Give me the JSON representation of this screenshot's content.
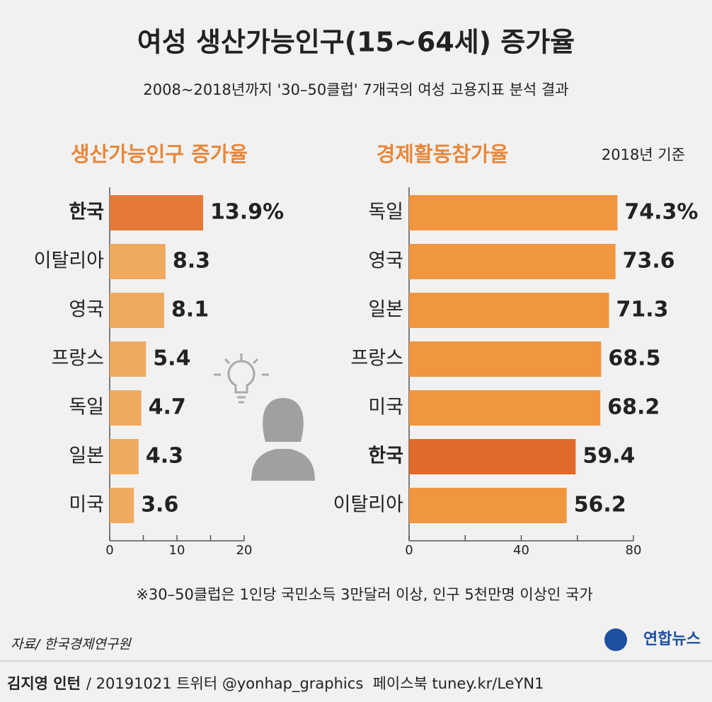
{
  "title": "여성 생산가능인구(15~64세) 증가율",
  "subtitle": "2008~2018년까지 '30–50클럽' 7개국의 여성 고용지표 분석 결과",
  "footnote": "※30–50클럽은 1인당 국민소득 3만달러 이상, 인구 5천만명 이상인 국가",
  "source": "자료/ 한국경제연구원",
  "logo": "연합뉴스",
  "credit": {
    "author": "김지영 인턴",
    "info": "/ 20191021 트위터 @yonhap_graphics  페이스북 tuney.kr/LeYN1"
  },
  "chart_data": [
    {
      "type": "bar",
      "orientation": "horizontal",
      "title": "생산가능인구 증가율",
      "categories": [
        "한국",
        "이탈리아",
        "영국",
        "프랑스",
        "독일",
        "일본",
        "미국"
      ],
      "values": [
        13.9,
        8.3,
        8.1,
        5.4,
        4.7,
        4.3,
        3.6
      ],
      "value_labels": [
        "13.9%",
        "8.3",
        "8.1",
        "5.4",
        "4.7",
        "4.3",
        "3.6"
      ],
      "colors": [
        "#e5793a",
        "#f0aa60",
        "#f0aa60",
        "#f0aa60",
        "#f0aa60",
        "#f0aa60",
        "#f0aa60"
      ],
      "highlight_color": "#e5793a",
      "xlim": [
        0,
        20
      ],
      "xticks": [
        0,
        10,
        20
      ],
      "minor_xticks": [
        5,
        15
      ]
    },
    {
      "type": "bar",
      "orientation": "horizontal",
      "title": "경제활동참가율",
      "note": "2018년 기준",
      "categories": [
        "독일",
        "영국",
        "일본",
        "프랑스",
        "미국",
        "한국",
        "이탈리아"
      ],
      "values": [
        74.3,
        73.6,
        71.3,
        68.5,
        68.2,
        59.4,
        56.2
      ],
      "value_labels": [
        "74.3%",
        "73.6",
        "71.3",
        "68.5",
        "68.2",
        "59.4",
        "56.2"
      ],
      "colors": [
        "#f0963f",
        "#f0963f",
        "#f0963f",
        "#f0963f",
        "#f0963f",
        "#e06a2b",
        "#f0963f"
      ],
      "highlight_color": "#e06a2b",
      "xlim": [
        0,
        80
      ],
      "xticks": [
        0,
        40,
        80
      ],
      "minor_xticks": [
        20,
        60
      ]
    }
  ]
}
